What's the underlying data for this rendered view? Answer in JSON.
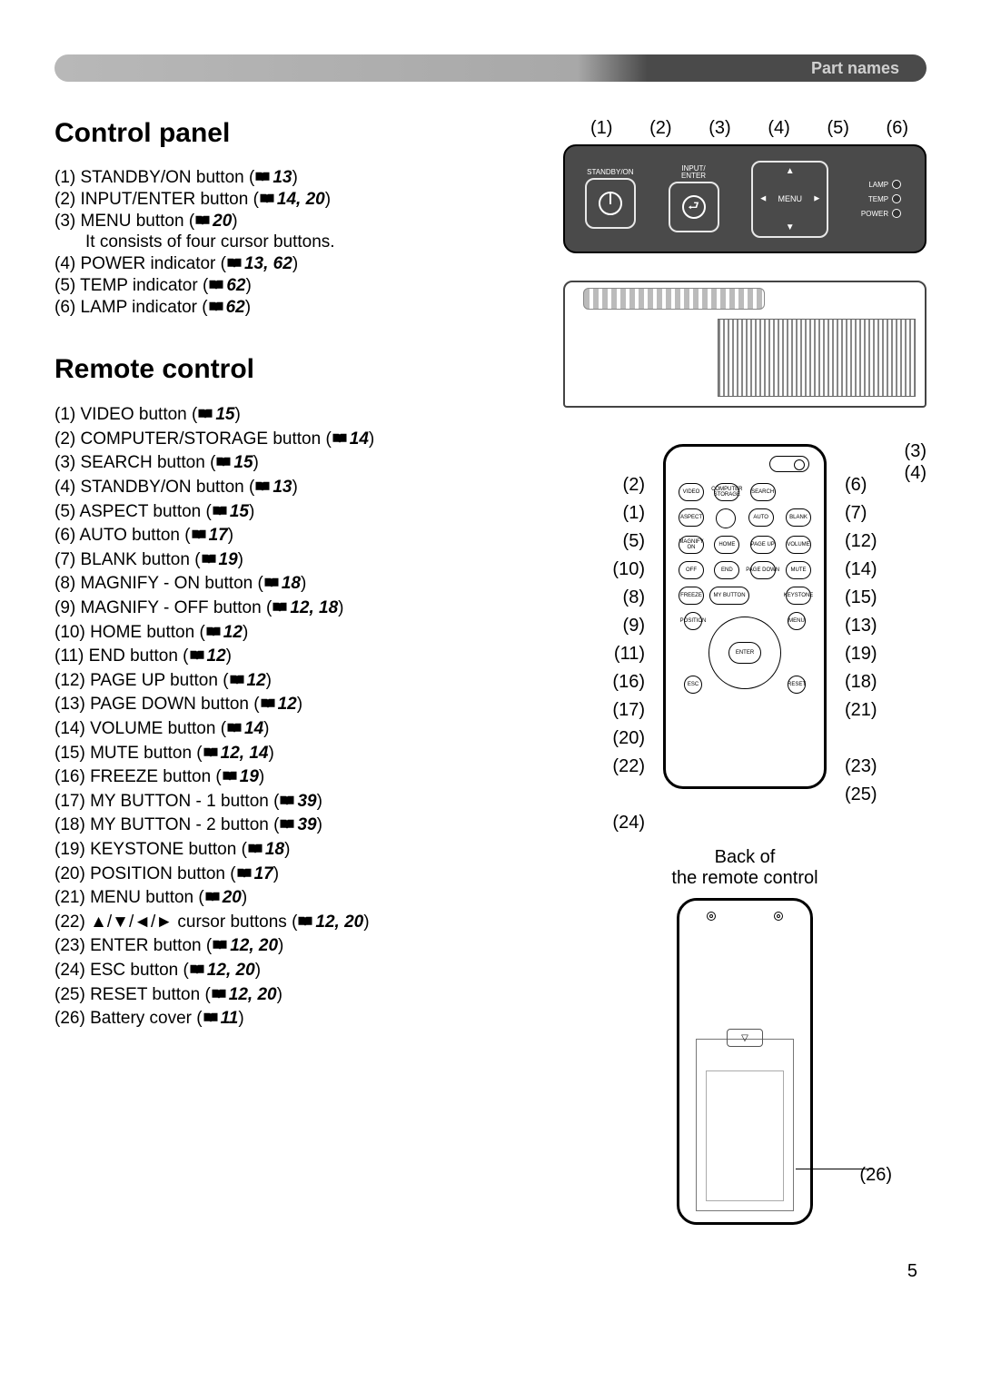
{
  "header": {
    "section_label": "Part names"
  },
  "page_number": "5",
  "colors": {
    "header_grey": "#a8a8a8",
    "header_dark": "#4a4a4a",
    "panel_bg": "#4a4a4a",
    "text": "#000000"
  },
  "control_panel": {
    "title": "Control panel",
    "callout_numbers": [
      "(1)",
      "(2)",
      "(3)",
      "(4)",
      "(5)",
      "(6)"
    ],
    "panel_labels": {
      "standby_on": "STANDBY/ON",
      "input_enter": "INPUT/\nENTER",
      "menu": "MENU",
      "lamp": "LAMP",
      "temp": "TEMP",
      "power": "POWER"
    },
    "items": [
      {
        "num": "(1)",
        "label": "STANDBY/ON button",
        "ref": "13"
      },
      {
        "num": "(2)",
        "label": "INPUT/ENTER button",
        "ref": "14, 20"
      },
      {
        "num": "(3)",
        "label": "MENU button",
        "ref": "20",
        "note": "It consists of four cursor buttons."
      },
      {
        "num": "(4)",
        "label": "POWER indicator",
        "ref": "13, 62"
      },
      {
        "num": "(5)",
        "label": "TEMP indicator",
        "ref": "62"
      },
      {
        "num": "(6)",
        "label": "LAMP indicator",
        "ref": "62"
      }
    ]
  },
  "remote_control": {
    "title": "Remote control",
    "back_caption_l1": "Back of",
    "back_caption_l2": "the remote control",
    "battery_callout": "(26)",
    "left_callouts": [
      "(2)",
      "(1)",
      "(5)",
      "(10)",
      "(8)",
      "(9)",
      "(11)",
      "(16)",
      "(17)",
      "(20)",
      "(22)",
      "",
      "(24)"
    ],
    "right_top_callouts": [
      "(3)",
      "(4)"
    ],
    "right_callouts": [
      "(6)",
      "(7)",
      "(12)",
      "(14)",
      "(15)",
      "(13)",
      "(19)",
      "(18)",
      "(21)",
      "",
      "(23)",
      "(25)"
    ],
    "button_labels": {
      "row1": [
        "VIDEO",
        "COMPUTER\nSTORAGE",
        "SEARCH",
        ""
      ],
      "row2": [
        "ASPECT",
        "",
        "AUTO",
        "BLANK"
      ],
      "row3": [
        "MAGNIFY\nON",
        "HOME",
        "PAGE UP",
        "VOLUME"
      ],
      "row4": [
        "OFF",
        "END",
        "PAGE DOWN",
        "MUTE"
      ],
      "row5": [
        "FREEZE",
        "MY BUTTON",
        "",
        "KEYSTONE"
      ],
      "dpad_tl": "POSITION",
      "dpad_tr": "MENU",
      "dpad_bl": "ESC",
      "dpad_br": "RESET",
      "enter": "ENTER"
    },
    "items": [
      {
        "num": "(1)",
        "label": "VIDEO button",
        "ref": "15"
      },
      {
        "num": "(2)",
        "label": "COMPUTER/STORAGE button",
        "ref": "14"
      },
      {
        "num": "(3)",
        "label": "SEARCH button",
        "ref": "15"
      },
      {
        "num": "(4)",
        "label": "STANDBY/ON button",
        "ref": "13"
      },
      {
        "num": "(5)",
        "label": "ASPECT button",
        "ref": "15"
      },
      {
        "num": "(6)",
        "label": "AUTO button",
        "ref": "17"
      },
      {
        "num": "(7)",
        "label": "BLANK button",
        "ref": "19"
      },
      {
        "num": "(8)",
        "label": "MAGNIFY - ON button",
        "ref": "18"
      },
      {
        "num": "(9)",
        "label": "MAGNIFY - OFF button",
        "ref": "12, 18"
      },
      {
        "num": "(10)",
        "label": "HOME button",
        "ref": "12"
      },
      {
        "num": "(11)",
        "label": "END button",
        "ref": "12"
      },
      {
        "num": "(12)",
        "label": "PAGE UP button",
        "ref": "12"
      },
      {
        "num": "(13)",
        "label": "PAGE DOWN button",
        "ref": "12"
      },
      {
        "num": "(14)",
        "label": "VOLUME button",
        "ref": "14"
      },
      {
        "num": "(15)",
        "label": "MUTE button",
        "ref": "12, 14"
      },
      {
        "num": "(16)",
        "label": "FREEZE button",
        "ref": "19"
      },
      {
        "num": "(17)",
        "label": "MY BUTTON - 1 button",
        "ref": "39"
      },
      {
        "num": "(18)",
        "label": "MY BUTTON - 2 button",
        "ref": "39"
      },
      {
        "num": "(19)",
        "label": "KEYSTONE button",
        "ref": "18"
      },
      {
        "num": "(20)",
        "label": "POSITION button",
        "ref": "17"
      },
      {
        "num": "(21)",
        "label": "MENU button",
        "ref": "20"
      },
      {
        "num": "(22)",
        "label": "▲/▼/◄/► cursor buttons",
        "ref": "12, 20"
      },
      {
        "num": "(23)",
        "label": "ENTER button",
        "ref": "12, 20"
      },
      {
        "num": "(24)",
        "label": "ESC button",
        "ref": "12, 20"
      },
      {
        "num": "(25)",
        "label": "RESET button",
        "ref": "12, 20"
      },
      {
        "num": "(26)",
        "label": "Battery cover",
        "ref": "11"
      }
    ]
  }
}
